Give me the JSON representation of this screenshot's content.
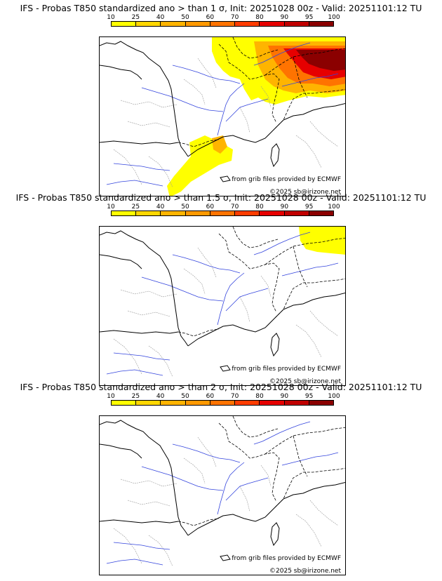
{
  "colorbar": {
    "ticks": [
      "10",
      "25",
      "40",
      "50",
      "60",
      "70",
      "80",
      "90",
      "95",
      "100"
    ],
    "colors": [
      "#ffff00",
      "#ffd700",
      "#ffb400",
      "#ff9900",
      "#ff7300",
      "#ff3c00",
      "#e60000",
      "#c00000",
      "#8b0000"
    ]
  },
  "panels": [
    {
      "title": "IFS - Probas T850  standardized ano > than 1 σ, Init: 20251028 00z - Valid: 20251101:12 TU",
      "credit_source": "from grib files provided by ECMWF",
      "credit_copyright": "©2025 sb@irizone.net",
      "coverage": "high"
    },
    {
      "title": "IFS - Probas T850  standardized ano > than 1.5 σ, Init: 20251028 00z - Valid: 20251101:12 TU",
      "credit_source": "from grib files provided by ECMWF",
      "credit_copyright": "©2025 sb@irizone.net",
      "coverage": "low"
    },
    {
      "title": "IFS - Probas T850  standardized ano > than 2 σ, Init: 20251028 00z - Valid: 20251101:12 TU",
      "credit_source": "from grib files provided by ECMWF",
      "credit_copyright": "©2025 sb@irizone.net",
      "coverage": "none"
    }
  ]
}
